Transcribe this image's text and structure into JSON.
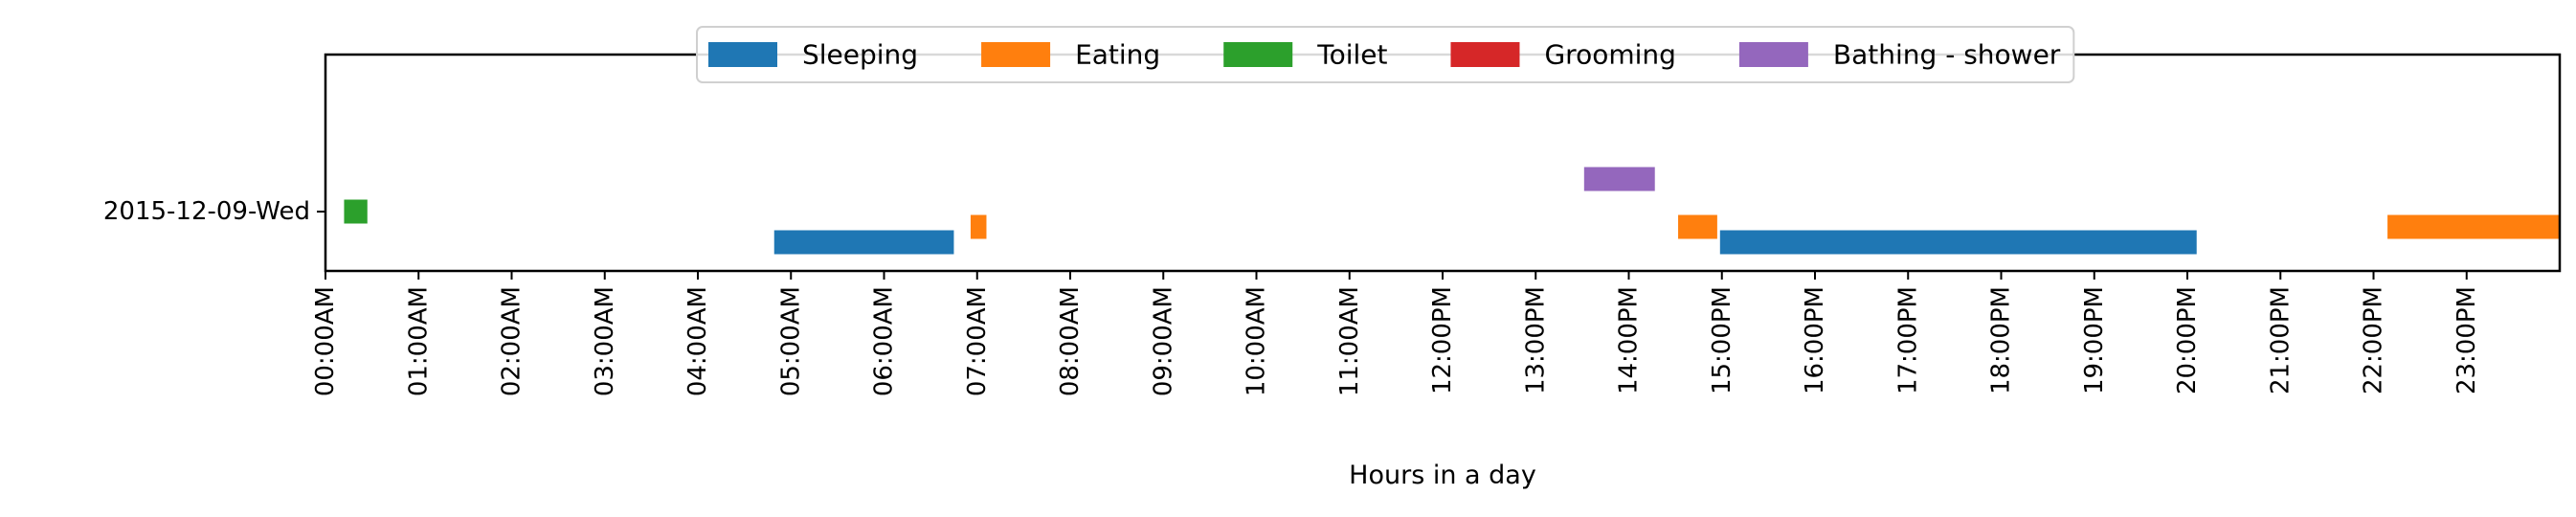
{
  "chart_data": {
    "type": "timeline",
    "title": "",
    "xlabel": "Hours in a day",
    "ylabel": "",
    "xlim": [
      0,
      24
    ],
    "grid": false,
    "legend_position": "top-center",
    "rows": [
      "2015-12-09-Wed"
    ],
    "x_ticks": [
      {
        "value": 0,
        "label": "00:00AM"
      },
      {
        "value": 1,
        "label": "01:00AM"
      },
      {
        "value": 2,
        "label": "02:00AM"
      },
      {
        "value": 3,
        "label": "03:00AM"
      },
      {
        "value": 4,
        "label": "04:00AM"
      },
      {
        "value": 5,
        "label": "05:00AM"
      },
      {
        "value": 6,
        "label": "06:00AM"
      },
      {
        "value": 7,
        "label": "07:00AM"
      },
      {
        "value": 8,
        "label": "08:00AM"
      },
      {
        "value": 9,
        "label": "09:00AM"
      },
      {
        "value": 10,
        "label": "10:00AM"
      },
      {
        "value": 11,
        "label": "11:00AM"
      },
      {
        "value": 12,
        "label": "12:00PM"
      },
      {
        "value": 13,
        "label": "13:00PM"
      },
      {
        "value": 14,
        "label": "14:00PM"
      },
      {
        "value": 15,
        "label": "15:00PM"
      },
      {
        "value": 16,
        "label": "16:00PM"
      },
      {
        "value": 17,
        "label": "17:00PM"
      },
      {
        "value": 18,
        "label": "18:00PM"
      },
      {
        "value": 19,
        "label": "19:00PM"
      },
      {
        "value": 20,
        "label": "20:00PM"
      },
      {
        "value": 21,
        "label": "21:00PM"
      },
      {
        "value": 22,
        "label": "22:00PM"
      },
      {
        "value": 23,
        "label": "23:00PM"
      }
    ],
    "series": [
      {
        "name": "Sleeping",
        "color": "#1f77b4",
        "intervals": [
          [
            4.82,
            6.75
          ],
          [
            14.98,
            20.1
          ]
        ]
      },
      {
        "name": "Eating",
        "color": "#ff7f0e",
        "intervals": [
          [
            6.93,
            7.1
          ],
          [
            14.53,
            14.95
          ],
          [
            22.15,
            24.0
          ]
        ]
      },
      {
        "name": "Toilet",
        "color": "#2ca02c",
        "intervals": [
          [
            0.2,
            0.45
          ]
        ]
      },
      {
        "name": "Grooming",
        "color": "#d62728",
        "intervals": []
      },
      {
        "name": "Bathing - shower",
        "color": "#9467bd",
        "intervals": [
          [
            13.52,
            14.28
          ]
        ]
      }
    ]
  }
}
